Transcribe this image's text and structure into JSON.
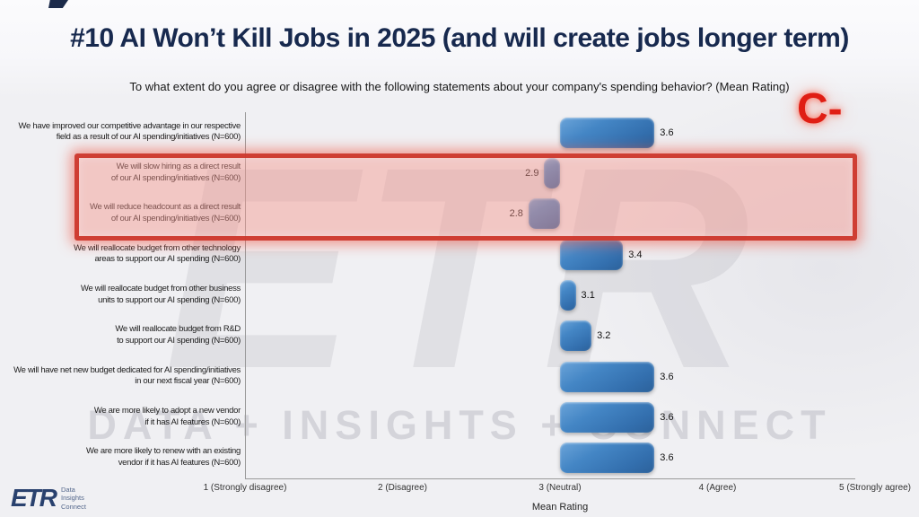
{
  "page": {
    "title": "#10 AI Won’t Kill Jobs in 2025 (and will create jobs longer term)",
    "grade": "C-"
  },
  "chart_data": {
    "type": "bar",
    "orientation": "horizontal",
    "title": "To what extent do you agree or disagree with the following statements about your company's spending behavior? (Mean Rating)",
    "xlabel": "Mean Rating",
    "xlim": [
      1,
      5
    ],
    "baseline": 3,
    "bar_color": "#3b78b8",
    "axis_ticks": [
      {
        "value": 1,
        "label": "1 (Strongly disagree)"
      },
      {
        "value": 2,
        "label": "2 (Disagree)"
      },
      {
        "value": 3,
        "label": "3 (Neutral)"
      },
      {
        "value": 4,
        "label": "4 (Agree)"
      },
      {
        "value": 5,
        "label": "5 (Strongly agree)"
      }
    ],
    "categories": [
      "We have improved our competitive advantage in our respective\nfield as a result of our AI spending/initiatives (N=600)",
      "We will slow hiring as a direct result\nof our AI spending/initiatives (N=600)",
      "We will reduce headcount as a direct result\nof our AI spending/initiatives (N=600)",
      "We will reallocate budget from other technology\nareas to support our AI spending (N=600)",
      "We will reallocate budget from other business\nunits to support our AI spending (N=600)",
      "We will reallocate budget from R&D\nto support our AI spending (N=600)",
      "We will have net new budget dedicated for AI spending/initiatives\nin our next fiscal year (N=600)",
      "We are more likely to adopt a new vendor\nif it has AI features (N=600)",
      "We are more likely to renew with an existing\nvendor if it has AI features (N=600)"
    ],
    "values": [
      3.6,
      2.9,
      2.8,
      3.4,
      3.1,
      3.2,
      3.6,
      3.6,
      3.6
    ],
    "highlighted_rows": [
      1,
      2
    ],
    "highlight_color": "#cc372b"
  },
  "watermark": {
    "big_text": "ETR",
    "tagline": "DATA + INSIGHTS + CONNECT"
  },
  "logo": {
    "brand": "ETR",
    "lines": [
      "Data",
      "Insights",
      "Connect"
    ]
  }
}
